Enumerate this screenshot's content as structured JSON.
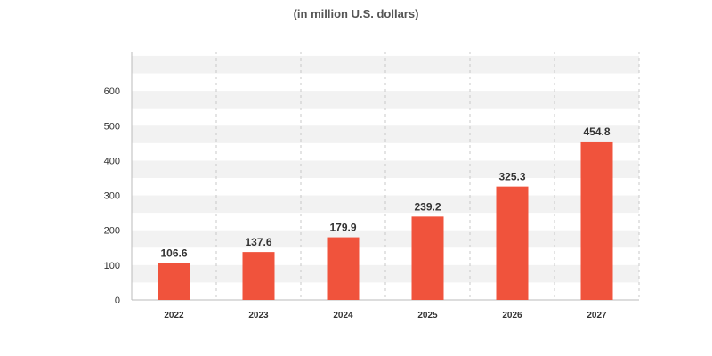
{
  "subtitle": "(in million U.S. dollars)",
  "colors": {
    "bar": "#f0533c",
    "band": "#f2f2f2",
    "axis": "#bbbbbb",
    "dashed_grid": "#c8c8c8"
  },
  "chart_data": {
    "type": "bar",
    "title": "",
    "subtitle": "(in million U.S. dollars)",
    "xlabel": "",
    "ylabel": "",
    "categories": [
      "2022",
      "2023",
      "2024",
      "2025",
      "2026",
      "2027"
    ],
    "values": [
      106.6,
      137.6,
      179.9,
      239.2,
      325.3,
      454.8
    ],
    "value_labels": [
      "106.6",
      "137.6",
      "179.9",
      "239.2",
      "325.3",
      "454.8"
    ],
    "ylim": [
      0,
      700
    ],
    "yticks": [
      0,
      100,
      200,
      300,
      400,
      500,
      600
    ],
    "ytick_labels": [
      "0",
      "100",
      "200",
      "300",
      "400",
      "500",
      "600"
    ],
    "grid": "alternating horizontal bands, dashed vertical separators",
    "legend": "none"
  }
}
